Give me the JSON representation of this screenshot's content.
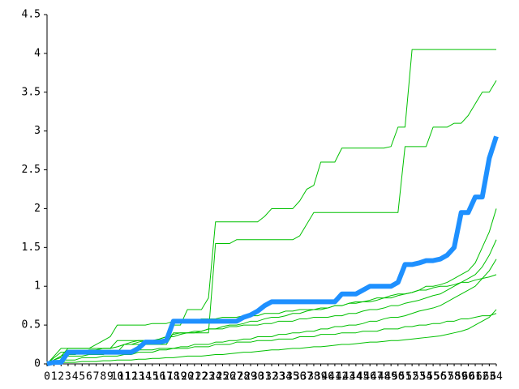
{
  "chart_data": {
    "type": "line",
    "x": [
      0,
      1,
      2,
      3,
      4,
      5,
      6,
      7,
      8,
      9,
      10,
      11,
      12,
      13,
      14,
      15,
      16,
      17,
      18,
      19,
      20,
      21,
      22,
      23,
      24,
      25,
      26,
      27,
      28,
      29,
      30,
      31,
      32,
      33,
      34,
      35,
      36,
      37,
      38,
      39,
      40,
      41,
      42,
      43,
      44,
      45,
      46,
      47,
      48,
      49,
      50,
      51,
      52,
      53,
      54,
      55,
      56,
      57,
      58,
      59,
      60,
      61,
      62,
      63,
      64
    ],
    "xlim": [
      0,
      64
    ],
    "xticks": [
      0,
      1,
      2,
      3,
      4,
      5,
      6,
      7,
      8,
      9,
      10,
      11,
      12,
      13,
      14,
      15,
      16,
      17,
      18,
      19,
      20,
      21,
      22,
      23,
      24,
      25,
      26,
      27,
      28,
      29,
      30,
      31,
      32,
      33,
      34,
      35,
      36,
      37,
      38,
      39,
      40,
      41,
      42,
      43,
      44,
      45,
      46,
      47,
      48,
      49,
      50,
      51,
      52,
      53,
      54,
      55,
      56,
      57,
      58,
      59,
      60,
      61,
      62,
      63,
      64
    ],
    "ylim": [
      0,
      4.5
    ],
    "yticks": [
      0,
      0.5,
      1,
      1.5,
      2,
      2.5,
      3,
      3.5,
      4,
      4.5
    ],
    "grid": false,
    "series": [
      {
        "color": "#00c000",
        "width": 1,
        "values": [
          0,
          0.05,
          0.1,
          0.2,
          0.2,
          0.2,
          0.2,
          0.2,
          0.2,
          0.2,
          0.3,
          0.3,
          0.3,
          0.3,
          0.3,
          0.3,
          0.3,
          0.3,
          0.5,
          0.5,
          0.7,
          0.7,
          0.7,
          0.85,
          1.83,
          1.83,
          1.83,
          1.83,
          1.83,
          1.83,
          1.83,
          1.9,
          2.0,
          2.0,
          2.0,
          2.0,
          2.1,
          2.25,
          2.3,
          2.6,
          2.6,
          2.6,
          2.78,
          2.78,
          2.78,
          2.78,
          2.78,
          2.78,
          2.78,
          2.8,
          3.05,
          3.05,
          4.05,
          4.05,
          4.05,
          4.05,
          4.05,
          4.05,
          4.05,
          4.05,
          4.05,
          4.05,
          4.05,
          4.05,
          4.05
        ]
      },
      {
        "color": "#00c000",
        "width": 1,
        "values": [
          0,
          0.05,
          0.1,
          0.15,
          0.15,
          0.15,
          0.15,
          0.15,
          0.15,
          0.15,
          0.15,
          0.25,
          0.25,
          0.25,
          0.25,
          0.25,
          0.25,
          0.25,
          0.4,
          0.4,
          0.4,
          0.4,
          0.4,
          0.4,
          1.55,
          1.55,
          1.55,
          1.6,
          1.6,
          1.6,
          1.6,
          1.6,
          1.6,
          1.6,
          1.6,
          1.6,
          1.65,
          1.8,
          1.95,
          1.95,
          1.95,
          1.95,
          1.95,
          1.95,
          1.95,
          1.95,
          1.95,
          1.95,
          1.95,
          1.95,
          1.95,
          2.8,
          2.8,
          2.8,
          2.8,
          3.05,
          3.05,
          3.05,
          3.1,
          3.1,
          3.2,
          3.35,
          3.5,
          3.5,
          3.65
        ]
      },
      {
        "color": "#00c000",
        "width": 1,
        "values": [
          0,
          0.05,
          0.1,
          0.12,
          0.12,
          0.15,
          0.15,
          0.18,
          0.2,
          0.2,
          0.22,
          0.25,
          0.25,
          0.28,
          0.3,
          0.3,
          0.32,
          0.35,
          0.35,
          0.38,
          0.4,
          0.4,
          0.42,
          0.45,
          0.45,
          0.48,
          0.5,
          0.5,
          0.52,
          0.55,
          0.55,
          0.58,
          0.6,
          0.6,
          0.62,
          0.65,
          0.65,
          0.68,
          0.7,
          0.7,
          0.72,
          0.75,
          0.75,
          0.78,
          0.8,
          0.8,
          0.82,
          0.85,
          0.85,
          0.88,
          0.9,
          0.9,
          0.92,
          0.95,
          0.95,
          0.98,
          1.0,
          1.0,
          1.02,
          1.05,
          1.05,
          1.08,
          1.1,
          1.12,
          1.15
        ]
      },
      {
        "color": "#00c000",
        "width": 1,
        "values": [
          0,
          0.02,
          0.05,
          0.05,
          0.05,
          0.08,
          0.08,
          0.08,
          0.1,
          0.1,
          0.1,
          0.12,
          0.12,
          0.15,
          0.15,
          0.15,
          0.18,
          0.18,
          0.2,
          0.2,
          0.2,
          0.22,
          0.22,
          0.22,
          0.25,
          0.25,
          0.25,
          0.28,
          0.28,
          0.28,
          0.3,
          0.3,
          0.3,
          0.32,
          0.32,
          0.32,
          0.35,
          0.35,
          0.35,
          0.38,
          0.38,
          0.38,
          0.4,
          0.4,
          0.4,
          0.42,
          0.42,
          0.42,
          0.45,
          0.45,
          0.45,
          0.48,
          0.48,
          0.5,
          0.5,
          0.52,
          0.52,
          0.55,
          0.55,
          0.58,
          0.58,
          0.6,
          0.62,
          0.62,
          0.65
        ]
      },
      {
        "color": "#00c000",
        "width": 1,
        "values": [
          0,
          0.1,
          0.2,
          0.2,
          0.2,
          0.2,
          0.2,
          0.25,
          0.3,
          0.35,
          0.5,
          0.5,
          0.5,
          0.5,
          0.5,
          0.52,
          0.52,
          0.52,
          0.55,
          0.55,
          0.55,
          0.55,
          0.58,
          0.58,
          0.58,
          0.6,
          0.6,
          0.6,
          0.62,
          0.62,
          0.62,
          0.65,
          0.65,
          0.65,
          0.68,
          0.68,
          0.7,
          0.7,
          0.7,
          0.72,
          0.72,
          0.75,
          0.75,
          0.78,
          0.78,
          0.8,
          0.8,
          0.82,
          0.85,
          0.85,
          0.88,
          0.9,
          0.92,
          0.95,
          1.0,
          1.0,
          1.02,
          1.05,
          1.1,
          1.15,
          1.2,
          1.3,
          1.5,
          1.7,
          2.0
        ]
      },
      {
        "color": "#00c000",
        "width": 1,
        "values": [
          0,
          0.05,
          0.08,
          0.1,
          0.1,
          0.1,
          0.12,
          0.12,
          0.12,
          0.15,
          0.15,
          0.15,
          0.15,
          0.18,
          0.18,
          0.18,
          0.2,
          0.2,
          0.2,
          0.22,
          0.22,
          0.25,
          0.25,
          0.25,
          0.28,
          0.28,
          0.3,
          0.3,
          0.32,
          0.32,
          0.35,
          0.35,
          0.35,
          0.38,
          0.38,
          0.4,
          0.4,
          0.42,
          0.42,
          0.45,
          0.45,
          0.48,
          0.48,
          0.5,
          0.5,
          0.52,
          0.55,
          0.55,
          0.58,
          0.6,
          0.6,
          0.62,
          0.65,
          0.68,
          0.7,
          0.72,
          0.75,
          0.8,
          0.85,
          0.9,
          0.95,
          1.0,
          1.1,
          1.2,
          1.35
        ]
      },
      {
        "color": "#00c000",
        "width": 1,
        "values": [
          0,
          0,
          0.02,
          0.02,
          0.02,
          0.03,
          0.03,
          0.03,
          0.04,
          0.04,
          0.05,
          0.05,
          0.05,
          0.06,
          0.06,
          0.07,
          0.07,
          0.08,
          0.08,
          0.09,
          0.1,
          0.1,
          0.1,
          0.11,
          0.12,
          0.12,
          0.13,
          0.14,
          0.15,
          0.15,
          0.16,
          0.17,
          0.18,
          0.18,
          0.19,
          0.2,
          0.2,
          0.21,
          0.22,
          0.22,
          0.23,
          0.24,
          0.25,
          0.25,
          0.26,
          0.27,
          0.28,
          0.28,
          0.29,
          0.3,
          0.3,
          0.31,
          0.32,
          0.33,
          0.34,
          0.35,
          0.36,
          0.38,
          0.4,
          0.42,
          0.45,
          0.5,
          0.55,
          0.6,
          0.7
        ]
      },
      {
        "color": "#00c000",
        "width": 1,
        "values": [
          0,
          0.08,
          0.15,
          0.15,
          0.15,
          0.15,
          0.18,
          0.18,
          0.2,
          0.2,
          0.22,
          0.25,
          0.28,
          0.3,
          0.3,
          0.3,
          0.32,
          0.35,
          0.38,
          0.4,
          0.4,
          0.42,
          0.42,
          0.45,
          0.45,
          0.45,
          0.48,
          0.48,
          0.5,
          0.5,
          0.5,
          0.52,
          0.52,
          0.55,
          0.55,
          0.55,
          0.58,
          0.58,
          0.6,
          0.6,
          0.6,
          0.62,
          0.62,
          0.65,
          0.65,
          0.68,
          0.7,
          0.7,
          0.72,
          0.75,
          0.75,
          0.78,
          0.8,
          0.82,
          0.85,
          0.88,
          0.9,
          0.95,
          1.0,
          1.05,
          1.1,
          1.15,
          1.25,
          1.4,
          1.6
        ]
      },
      {
        "color": "#1e90ff",
        "width": 6,
        "values": [
          0,
          0.02,
          0.02,
          0.15,
          0.15,
          0.15,
          0.15,
          0.15,
          0.15,
          0.15,
          0.15,
          0.15,
          0.15,
          0.2,
          0.28,
          0.28,
          0.28,
          0.3,
          0.55,
          0.55,
          0.55,
          0.55,
          0.55,
          0.55,
          0.55,
          0.55,
          0.55,
          0.55,
          0.6,
          0.63,
          0.68,
          0.75,
          0.8,
          0.8,
          0.8,
          0.8,
          0.8,
          0.8,
          0.8,
          0.8,
          0.8,
          0.8,
          0.9,
          0.9,
          0.9,
          0.95,
          1.0,
          1.0,
          1.0,
          1.0,
          1.05,
          1.28,
          1.28,
          1.3,
          1.33,
          1.33,
          1.35,
          1.4,
          1.5,
          1.95,
          1.95,
          2.15,
          2.15,
          2.65,
          2.93
        ]
      }
    ]
  }
}
